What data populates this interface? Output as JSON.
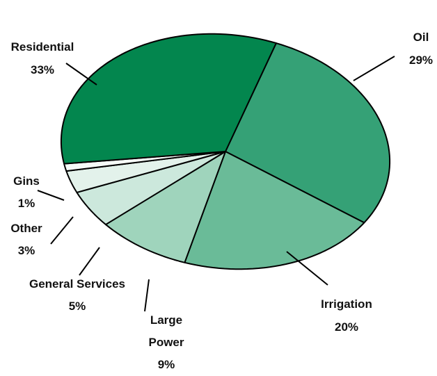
{
  "chart_data": {
    "type": "pie",
    "title": "",
    "slices": [
      {
        "label": "Oil",
        "pct_label": "29%",
        "value": 29,
        "color": "#35a176"
      },
      {
        "label": "Irrigation",
        "pct_label": "20%",
        "value": 20,
        "color": "#6abb98"
      },
      {
        "label": "Large Power",
        "label_lines": [
          "Large",
          "Power"
        ],
        "pct_label": "9%",
        "value": 9,
        "color": "#9fd4bc"
      },
      {
        "label": "General Services",
        "pct_label": "5%",
        "value": 5,
        "color": "#cce8dc"
      },
      {
        "label": "Other",
        "pct_label": "3%",
        "value": 3,
        "color": "#e3f2eb"
      },
      {
        "label": "Gins",
        "pct_label": "1%",
        "value": 1,
        "color": "#f6fbf8"
      },
      {
        "label": "Residential",
        "pct_label": "33%",
        "value": 33,
        "color": "#03864e"
      }
    ],
    "legend": "none",
    "grid": false
  }
}
